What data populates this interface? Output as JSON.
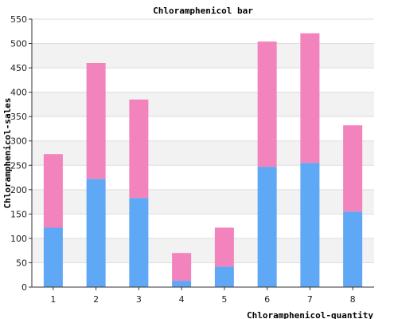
{
  "chart_data": {
    "type": "bar",
    "stacked": true,
    "title": "Chloramphenicol bar",
    "xlabel": "Chloramphenicol-quantity",
    "ylabel": "Chloramphenicol-sales",
    "categories": [
      "1",
      "2",
      "3",
      "4",
      "5",
      "6",
      "7",
      "8"
    ],
    "series": [
      {
        "values": [
          122,
          222,
          183,
          13,
          42,
          247,
          255,
          155
        ],
        "color": "#5fa8f5"
      },
      {
        "values": [
          151,
          238,
          202,
          57,
          80,
          257,
          266,
          177
        ],
        "color": "#f283bc"
      }
    ],
    "ylim": [
      0,
      550
    ],
    "yticks": [
      0,
      50,
      100,
      150,
      200,
      250,
      300,
      350,
      400,
      450,
      500,
      550
    ],
    "grid": true,
    "grid_bands": true,
    "legend": "none"
  }
}
